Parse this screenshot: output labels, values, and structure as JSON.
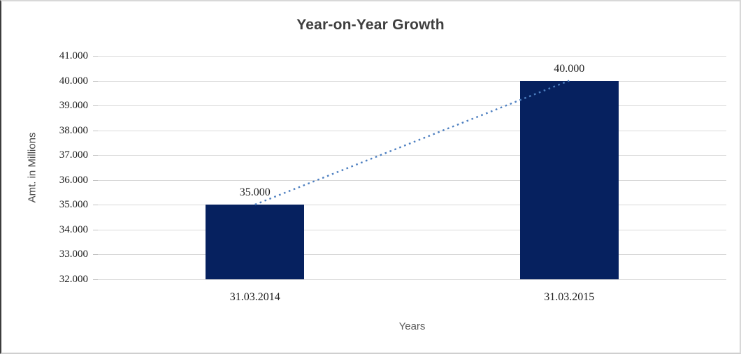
{
  "chart_data": {
    "type": "bar",
    "title": "Year-on-Year Growth",
    "xlabel": "Years",
    "ylabel": "Amt. in Millions",
    "categories": [
      "31.03.2014",
      "31.03.2015"
    ],
    "values": [
      35000,
      40000
    ],
    "data_labels": [
      "35.000",
      "40.000"
    ],
    "y_ticks": [
      {
        "label": "41.000",
        "value": 41000
      },
      {
        "label": "40.000",
        "value": 40000
      },
      {
        "label": "39.000",
        "value": 39000
      },
      {
        "label": "38.000",
        "value": 38000
      },
      {
        "label": "37.000",
        "value": 37000
      },
      {
        "label": "36.000",
        "value": 36000
      },
      {
        "label": "35.000",
        "value": 35000
      },
      {
        "label": "34.000",
        "value": 34000
      },
      {
        "label": "33.000",
        "value": 33000
      },
      {
        "label": "32.000",
        "value": 32000
      }
    ],
    "ylim": [
      32000,
      41000
    ],
    "grid": true,
    "legend": "none",
    "trendline": {
      "style": "dotted",
      "connects": [
        "31.03.2014",
        "31.03.2015"
      ]
    },
    "colors": {
      "bar": "#06215f",
      "trendline": "#4d7fc0",
      "gridline": "#d9d9d9",
      "tick_text": "#1f1f1f",
      "axis_title_text": "#595959",
      "title_text": "#3f3f3f"
    }
  }
}
